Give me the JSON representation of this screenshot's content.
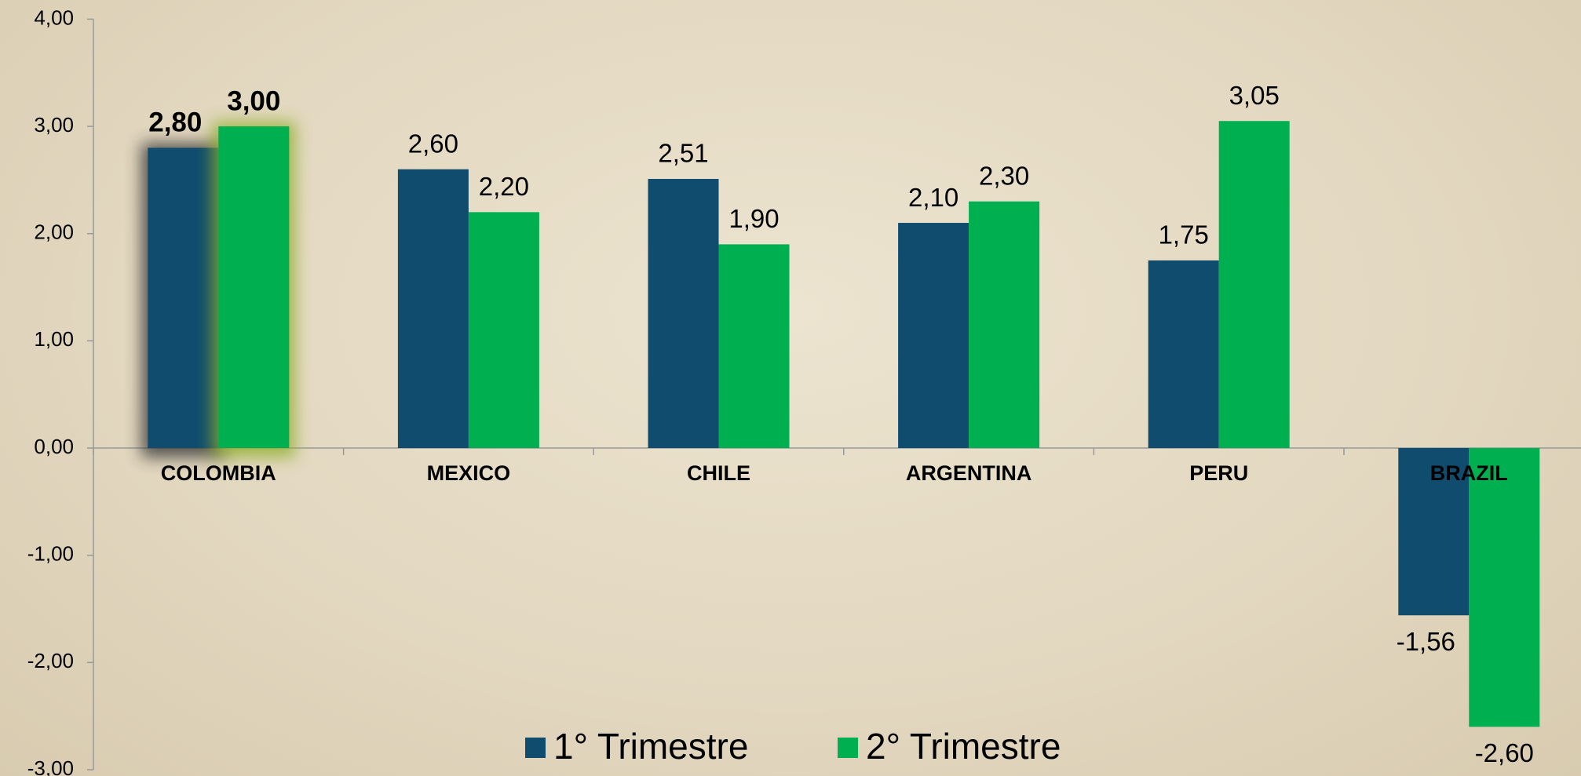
{
  "chart_data": {
    "type": "bar",
    "categories": [
      "COLOMBIA",
      "MEXICO",
      "CHILE",
      "ARGENTINA",
      "PERU",
      "BRAZIL"
    ],
    "series": [
      {
        "name": "1° Trimestre",
        "color": "#0f4c6e",
        "values": [
          2.8,
          2.6,
          2.51,
          2.1,
          1.75,
          -1.56
        ],
        "value_labels": [
          "2,80",
          "2,60",
          "2,51",
          "2,10",
          "1,75",
          "-1,56"
        ]
      },
      {
        "name": "2° Trimestre",
        "color": "#00b050",
        "values": [
          3.0,
          2.2,
          1.9,
          2.3,
          3.05,
          -2.6
        ],
        "value_labels": [
          "3,00",
          "2,20",
          "1,90",
          "2,30",
          "3,05",
          "-2,60"
        ]
      }
    ],
    "ylim": [
      -3,
      4
    ],
    "yticks": [
      {
        "value": 4,
        "label": "4,00"
      },
      {
        "value": 3,
        "label": "3,00"
      },
      {
        "value": 2,
        "label": "2,00"
      },
      {
        "value": 1,
        "label": "1,00"
      },
      {
        "value": 0,
        "label": "0,00"
      },
      {
        "value": -1,
        "label": "-1,00"
      },
      {
        "value": -2,
        "label": "-2,00"
      },
      {
        "value": -3,
        "label": "-3,00"
      }
    ],
    "grid": false,
    "legend": "bottom",
    "highlight": "COLOMBIA"
  }
}
